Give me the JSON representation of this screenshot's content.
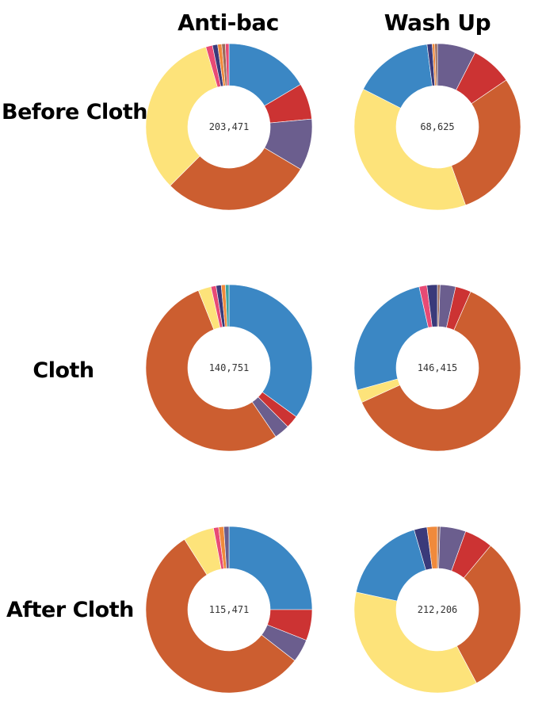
{
  "columns": [
    "Anti-bac",
    "Wash Up"
  ],
  "rows": [
    "Before Cloth",
    "Cloth",
    "After Cloth"
  ],
  "palette": {
    "blue": "#3b87c4",
    "red": "#cc3333",
    "purple": "#6b5e8e",
    "orange": "#cc5e30",
    "yellow": "#fde37a",
    "pink": "#e84a75",
    "navy": "#3a3a7a",
    "lightorange": "#f08a3c",
    "teal": "#3aa3a3",
    "brown": "#9a6a5a"
  },
  "chart_data": [
    {
      "type": "pie",
      "column": "Anti-bac",
      "row": "Before Cloth",
      "center_label": "203,471",
      "slices": [
        {
          "color": "blue",
          "value": 16.5
        },
        {
          "color": "red",
          "value": 7.0
        },
        {
          "color": "purple",
          "value": 10.0
        },
        {
          "color": "orange",
          "value": 29.0
        },
        {
          "color": "yellow",
          "value": 33.0
        },
        {
          "color": "pink",
          "value": 1.3
        },
        {
          "color": "navy",
          "value": 1.0
        },
        {
          "color": "lightorange",
          "value": 0.8
        },
        {
          "color": "brown",
          "value": 0.7
        },
        {
          "color": "pink",
          "value": 0.7
        }
      ]
    },
    {
      "type": "pie",
      "column": "Wash Up",
      "row": "Before Cloth",
      "center_label": "68,625",
      "slices": [
        {
          "color": "purple",
          "value": 7.5
        },
        {
          "color": "red",
          "value": 8.0
        },
        {
          "color": "orange",
          "value": 29.0
        },
        {
          "color": "yellow",
          "value": 38.0
        },
        {
          "color": "blue",
          "value": 15.5
        },
        {
          "color": "navy",
          "value": 1.0
        },
        {
          "color": "lightorange",
          "value": 0.5
        },
        {
          "color": "brown",
          "value": 0.5
        }
      ]
    },
    {
      "type": "pie",
      "column": "Anti-bac",
      "row": "Cloth",
      "center_label": "140,751",
      "slices": [
        {
          "color": "blue",
          "value": 35.0
        },
        {
          "color": "red",
          "value": 2.5
        },
        {
          "color": "purple",
          "value": 3.0
        },
        {
          "color": "orange",
          "value": 53.5
        },
        {
          "color": "yellow",
          "value": 2.5
        },
        {
          "color": "pink",
          "value": 1.0
        },
        {
          "color": "navy",
          "value": 1.0
        },
        {
          "color": "lightorange",
          "value": 0.8
        },
        {
          "color": "teal",
          "value": 0.7
        }
      ]
    },
    {
      "type": "pie",
      "column": "Wash Up",
      "row": "Cloth",
      "center_label": "146,415",
      "slices": [
        {
          "color": "brown",
          "value": 0.5
        },
        {
          "color": "purple",
          "value": 3.0
        },
        {
          "color": "red",
          "value": 3.0
        },
        {
          "color": "orange",
          "value": 61.0
        },
        {
          "color": "yellow",
          "value": 2.5
        },
        {
          "color": "blue",
          "value": 25.5
        },
        {
          "color": "pink",
          "value": 1.5
        },
        {
          "color": "navy",
          "value": 2.0
        }
      ]
    },
    {
      "type": "pie",
      "column": "Anti-bac",
      "row": "After Cloth",
      "center_label": "115,471",
      "slices": [
        {
          "color": "blue",
          "value": 25.0
        },
        {
          "color": "red",
          "value": 6.0
        },
        {
          "color": "purple",
          "value": 4.5
        },
        {
          "color": "orange",
          "value": 55.5
        },
        {
          "color": "yellow",
          "value": 6.0
        },
        {
          "color": "pink",
          "value": 1.0
        },
        {
          "color": "lightorange",
          "value": 1.0
        },
        {
          "color": "purple",
          "value": 1.0
        }
      ]
    },
    {
      "type": "pie",
      "column": "Wash Up",
      "row": "After Cloth",
      "center_label": "212,206",
      "slices": [
        {
          "color": "brown",
          "value": 0.5
        },
        {
          "color": "purple",
          "value": 5.0
        },
        {
          "color": "red",
          "value": 5.5
        },
        {
          "color": "orange",
          "value": 31.0
        },
        {
          "color": "yellow",
          "value": 36.0
        },
        {
          "color": "blue",
          "value": 17.0
        },
        {
          "color": "navy",
          "value": 2.5
        },
        {
          "color": "lightorange",
          "value": 2.0
        }
      ]
    }
  ]
}
